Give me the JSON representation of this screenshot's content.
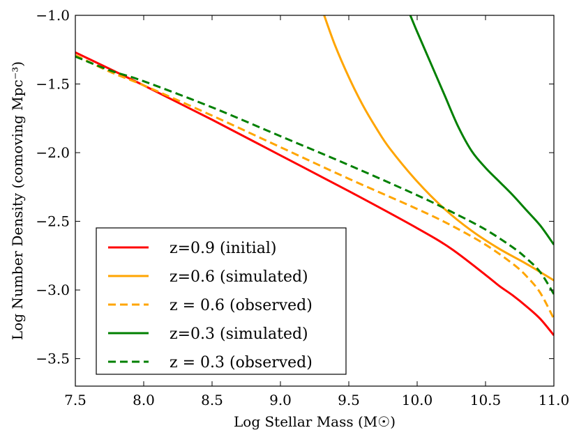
{
  "chart_data": {
    "type": "line",
    "title": "",
    "xlabel": "Log Stellar Mass (M☉)",
    "ylabel": "Log Number Density (comoving Mpc⁻³)",
    "xlim": [
      7.5,
      11.0
    ],
    "ylim": [
      -3.7,
      -1.0
    ],
    "xticks": [
      7.5,
      8.0,
      8.5,
      9.0,
      9.5,
      10.0,
      10.5,
      11.0
    ],
    "xtick_labels": [
      "7.5",
      "8.0",
      "8.5",
      "9.0",
      "9.5",
      "10.0",
      "10.5",
      "11.0"
    ],
    "yticks": [
      -1.0,
      -1.5,
      -2.0,
      -2.5,
      -3.0,
      -3.5
    ],
    "ytick_labels": [
      "−1.0",
      "−1.5",
      "−2.0",
      "−2.5",
      "−3.0",
      "−3.5"
    ],
    "grid": false,
    "legend_position": "lower-left",
    "series": [
      {
        "name": "z=0.9 (initial)",
        "color": "#ff0000",
        "dash": "solid",
        "x": [
          7.5,
          8.0,
          8.5,
          9.0,
          9.5,
          10.0,
          10.25,
          10.5,
          10.6,
          10.7,
          10.8,
          10.9,
          11.0
        ],
        "y": [
          -1.27,
          -1.51,
          -1.76,
          -2.02,
          -2.28,
          -2.55,
          -2.7,
          -2.89,
          -2.97,
          -3.04,
          -3.12,
          -3.21,
          -3.33
        ]
      },
      {
        "name": "z=0.6 (simulated)",
        "color": "#ffa500",
        "dash": "solid",
        "x": [
          9.32,
          9.4,
          9.5,
          9.6,
          9.7,
          9.8,
          10.0,
          10.2,
          10.4,
          10.6,
          10.8,
          11.0
        ],
        "y": [
          -1.0,
          -1.22,
          -1.45,
          -1.65,
          -1.82,
          -1.97,
          -2.21,
          -2.41,
          -2.57,
          -2.7,
          -2.81,
          -2.93
        ]
      },
      {
        "name": "z = 0.6 (observed)",
        "color": "#ffa500",
        "dash": "dashed",
        "x": [
          7.5,
          7.75,
          8.0,
          8.5,
          9.0,
          9.5,
          10.0,
          10.25,
          10.5,
          10.7,
          10.8,
          10.9,
          11.0
        ],
        "y": [
          -1.29,
          -1.41,
          -1.51,
          -1.73,
          -1.96,
          -2.19,
          -2.41,
          -2.53,
          -2.67,
          -2.81,
          -2.9,
          -3.02,
          -3.21
        ]
      },
      {
        "name": "z=0.3 (simulated)",
        "color": "#008000",
        "dash": "solid",
        "x": [
          9.95,
          10.0,
          10.1,
          10.2,
          10.3,
          10.4,
          10.5,
          10.6,
          10.7,
          10.8,
          10.9,
          11.0
        ],
        "y": [
          -1.0,
          -1.12,
          -1.35,
          -1.58,
          -1.81,
          -1.99,
          -2.11,
          -2.21,
          -2.31,
          -2.42,
          -2.53,
          -2.67
        ]
      },
      {
        "name": "z = 0.3 (observed)",
        "color": "#008000",
        "dash": "dashed",
        "x": [
          7.5,
          7.75,
          8.0,
          8.5,
          9.0,
          9.5,
          10.0,
          10.25,
          10.5,
          10.7,
          10.8,
          10.9,
          11.0
        ],
        "y": [
          -1.3,
          -1.4,
          -1.48,
          -1.67,
          -1.88,
          -2.09,
          -2.31,
          -2.43,
          -2.56,
          -2.69,
          -2.77,
          -2.87,
          -3.03
        ]
      }
    ]
  }
}
